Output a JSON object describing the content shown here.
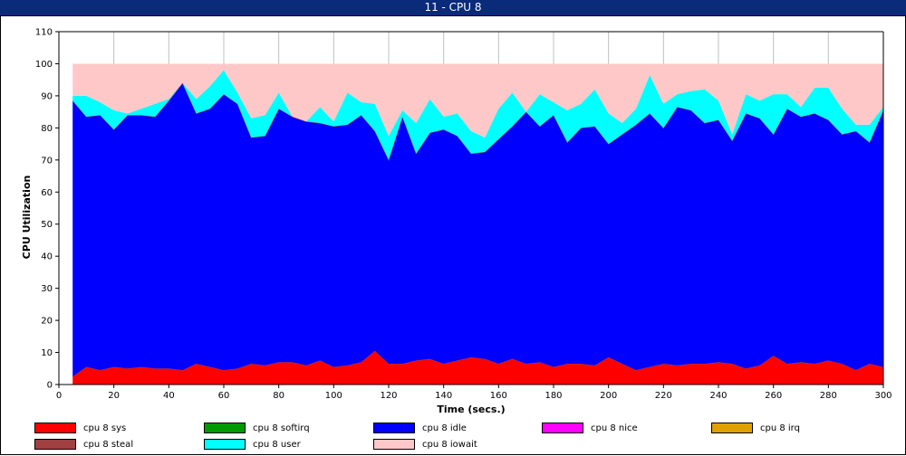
{
  "window": {
    "title": "11 - CPU 8"
  },
  "chart_data": {
    "type": "area",
    "stacked": true,
    "xlabel": "Time (secs.)",
    "ylabel": "CPU Utilization",
    "xlim": [
      0,
      300
    ],
    "ylim": [
      0,
      110
    ],
    "xticks": [
      0,
      20,
      40,
      60,
      80,
      100,
      120,
      140,
      160,
      180,
      200,
      220,
      240,
      260,
      280,
      300
    ],
    "yticks": [
      0,
      10,
      20,
      30,
      40,
      50,
      60,
      70,
      80,
      90,
      100,
      110
    ],
    "grid": "x",
    "legend_position": "bottom",
    "x": [
      5,
      10,
      15,
      20,
      25,
      30,
      35,
      40,
      45,
      50,
      55,
      60,
      65,
      70,
      75,
      80,
      85,
      90,
      95,
      100,
      105,
      110,
      115,
      120,
      125,
      130,
      135,
      140,
      145,
      150,
      155,
      160,
      165,
      170,
      175,
      180,
      185,
      190,
      195,
      200,
      205,
      210,
      215,
      220,
      225,
      230,
      235,
      240,
      245,
      250,
      255,
      260,
      265,
      270,
      275,
      280,
      285,
      290,
      295,
      300
    ],
    "series": [
      {
        "name": "cpu 8 sys",
        "color": "#ff0000",
        "values": [
          2.5,
          5.5,
          4.5,
          5.5,
          5,
          5.5,
          5,
          5,
          4.5,
          6.5,
          5.5,
          4.5,
          5,
          6.5,
          6,
          7,
          7,
          6,
          7.5,
          5.5,
          6,
          7,
          10.5,
          6.5,
          6.5,
          7.5,
          8,
          6.5,
          7.5,
          8.5,
          8,
          6.5,
          8,
          6.5,
          7,
          5.5,
          6.5,
          6.5,
          6,
          8.5,
          6.5,
          4.5,
          5.5,
          6.5,
          6,
          6.5,
          6.5,
          7,
          6.5,
          5,
          6,
          9,
          6.5,
          7,
          6.5,
          7.5,
          6.5,
          4.5,
          6.5,
          5.5
        ]
      },
      {
        "name": "cpu 8 softirq",
        "color": "#009900",
        "values": [
          0,
          0,
          0,
          0,
          0,
          0,
          0,
          0,
          0,
          0,
          0,
          0,
          0,
          0,
          0,
          0,
          0,
          0,
          0,
          0,
          0,
          0,
          0,
          0,
          0,
          0,
          0,
          0,
          0,
          0,
          0,
          0,
          0,
          0,
          0,
          0,
          0,
          0,
          0,
          0,
          0,
          0,
          0,
          0,
          0,
          0,
          0,
          0,
          0,
          0,
          0,
          0,
          0,
          0,
          0,
          0,
          0,
          0,
          0,
          0
        ]
      },
      {
        "name": "cpu 8 idle",
        "color": "#0000ff",
        "values": [
          86,
          78,
          79.5,
          74,
          79,
          78.5,
          78.5,
          83.5,
          89.5,
          78,
          80.5,
          86,
          82.5,
          70.5,
          71.5,
          79,
          76.5,
          76,
          74,
          75,
          75,
          77,
          68.5,
          63.5,
          77,
          64.5,
          70.5,
          73,
          70,
          63.5,
          64.5,
          70,
          72.5,
          78.5,
          73.5,
          78.5,
          69,
          73.5,
          74.5,
          66.5,
          71.5,
          76.5,
          79,
          73.5,
          80.5,
          79,
          75,
          75.5,
          69.5,
          79.5,
          77,
          69,
          79.5,
          76.5,
          78,
          75,
          71.5,
          74.5,
          69,
          80
        ]
      },
      {
        "name": "cpu 8 nice",
        "color": "#ff00ff",
        "values": [
          0,
          0,
          0,
          0,
          0,
          0,
          0,
          0,
          0,
          0,
          0,
          0,
          0,
          0,
          0,
          0,
          0,
          0,
          0,
          0,
          0,
          0,
          0,
          0,
          0,
          0,
          0,
          0,
          0,
          0,
          0,
          0,
          0,
          0,
          0,
          0,
          0,
          0,
          0,
          0,
          0,
          0,
          0,
          0,
          0,
          0,
          0,
          0,
          0,
          0,
          0,
          0,
          0,
          0,
          0,
          0,
          0,
          0,
          0,
          0
        ]
      },
      {
        "name": "cpu 8 irq",
        "color": "#e0a000",
        "values": [
          0,
          0,
          0,
          0,
          0,
          0,
          0,
          0,
          0,
          0,
          0,
          0,
          0,
          0,
          0,
          0,
          0,
          0,
          0,
          0,
          0,
          0,
          0,
          0,
          0,
          0,
          0,
          0,
          0,
          0,
          0,
          0,
          0,
          0,
          0,
          0,
          0,
          0,
          0,
          0,
          0,
          0,
          0,
          0,
          0,
          0,
          0,
          0,
          0,
          0,
          0,
          0,
          0,
          0,
          0,
          0,
          0,
          0,
          0,
          0
        ]
      },
      {
        "name": "cpu 8 steal",
        "color": "#a04040",
        "values": [
          0,
          0,
          0,
          0,
          0,
          0,
          0,
          0,
          0,
          0,
          0,
          0,
          0,
          0,
          0,
          0,
          0,
          0,
          0,
          0,
          0,
          0,
          0,
          0,
          0,
          0,
          0,
          0,
          0,
          0,
          0,
          0,
          0,
          0,
          0,
          0,
          0,
          0,
          0,
          0,
          0,
          0,
          0,
          0,
          0,
          0,
          0,
          0,
          0,
          0,
          0,
          0,
          0,
          0,
          0,
          0,
          0,
          0,
          0,
          0
        ]
      },
      {
        "name": "cpu 8 user",
        "color": "#00ffff",
        "values": [
          1.5,
          6.5,
          4,
          6,
          0.5,
          2,
          4,
          0.5,
          0,
          4.5,
          7,
          7.5,
          3.5,
          6,
          6.5,
          5,
          0,
          0,
          5,
          1.5,
          10,
          4,
          8.5,
          7.5,
          2,
          9.5,
          10.5,
          4,
          7,
          7,
          4.5,
          9.5,
          10.5,
          0,
          10,
          4,
          10,
          7.5,
          11.5,
          9.5,
          3.5,
          5,
          12,
          7.5,
          4,
          6,
          10.5,
          6,
          2,
          6,
          5.5,
          12.5,
          4.5,
          3,
          8,
          10,
          8,
          2,
          5.5,
          1
        ]
      },
      {
        "name": "cpu 8 iowait",
        "color": "#ffc8c8",
        "values": [
          10,
          10,
          12,
          14.5,
          15.5,
          14,
          12.5,
          11,
          6,
          11,
          7,
          2,
          9,
          17,
          16,
          9,
          16.5,
          18,
          13.5,
          18,
          9,
          12,
          12.5,
          22.5,
          14.5,
          18.5,
          11,
          16.5,
          15.5,
          21,
          23,
          14,
          9,
          15,
          9.5,
          12,
          14.5,
          12.5,
          8,
          15.5,
          18.5,
          14,
          3.5,
          12.5,
          9.5,
          8.5,
          8,
          11.5,
          22,
          9.5,
          11.5,
          9.5,
          9.5,
          13.5,
          7.5,
          7.5,
          14,
          19,
          19,
          13.5
        ]
      }
    ]
  }
}
